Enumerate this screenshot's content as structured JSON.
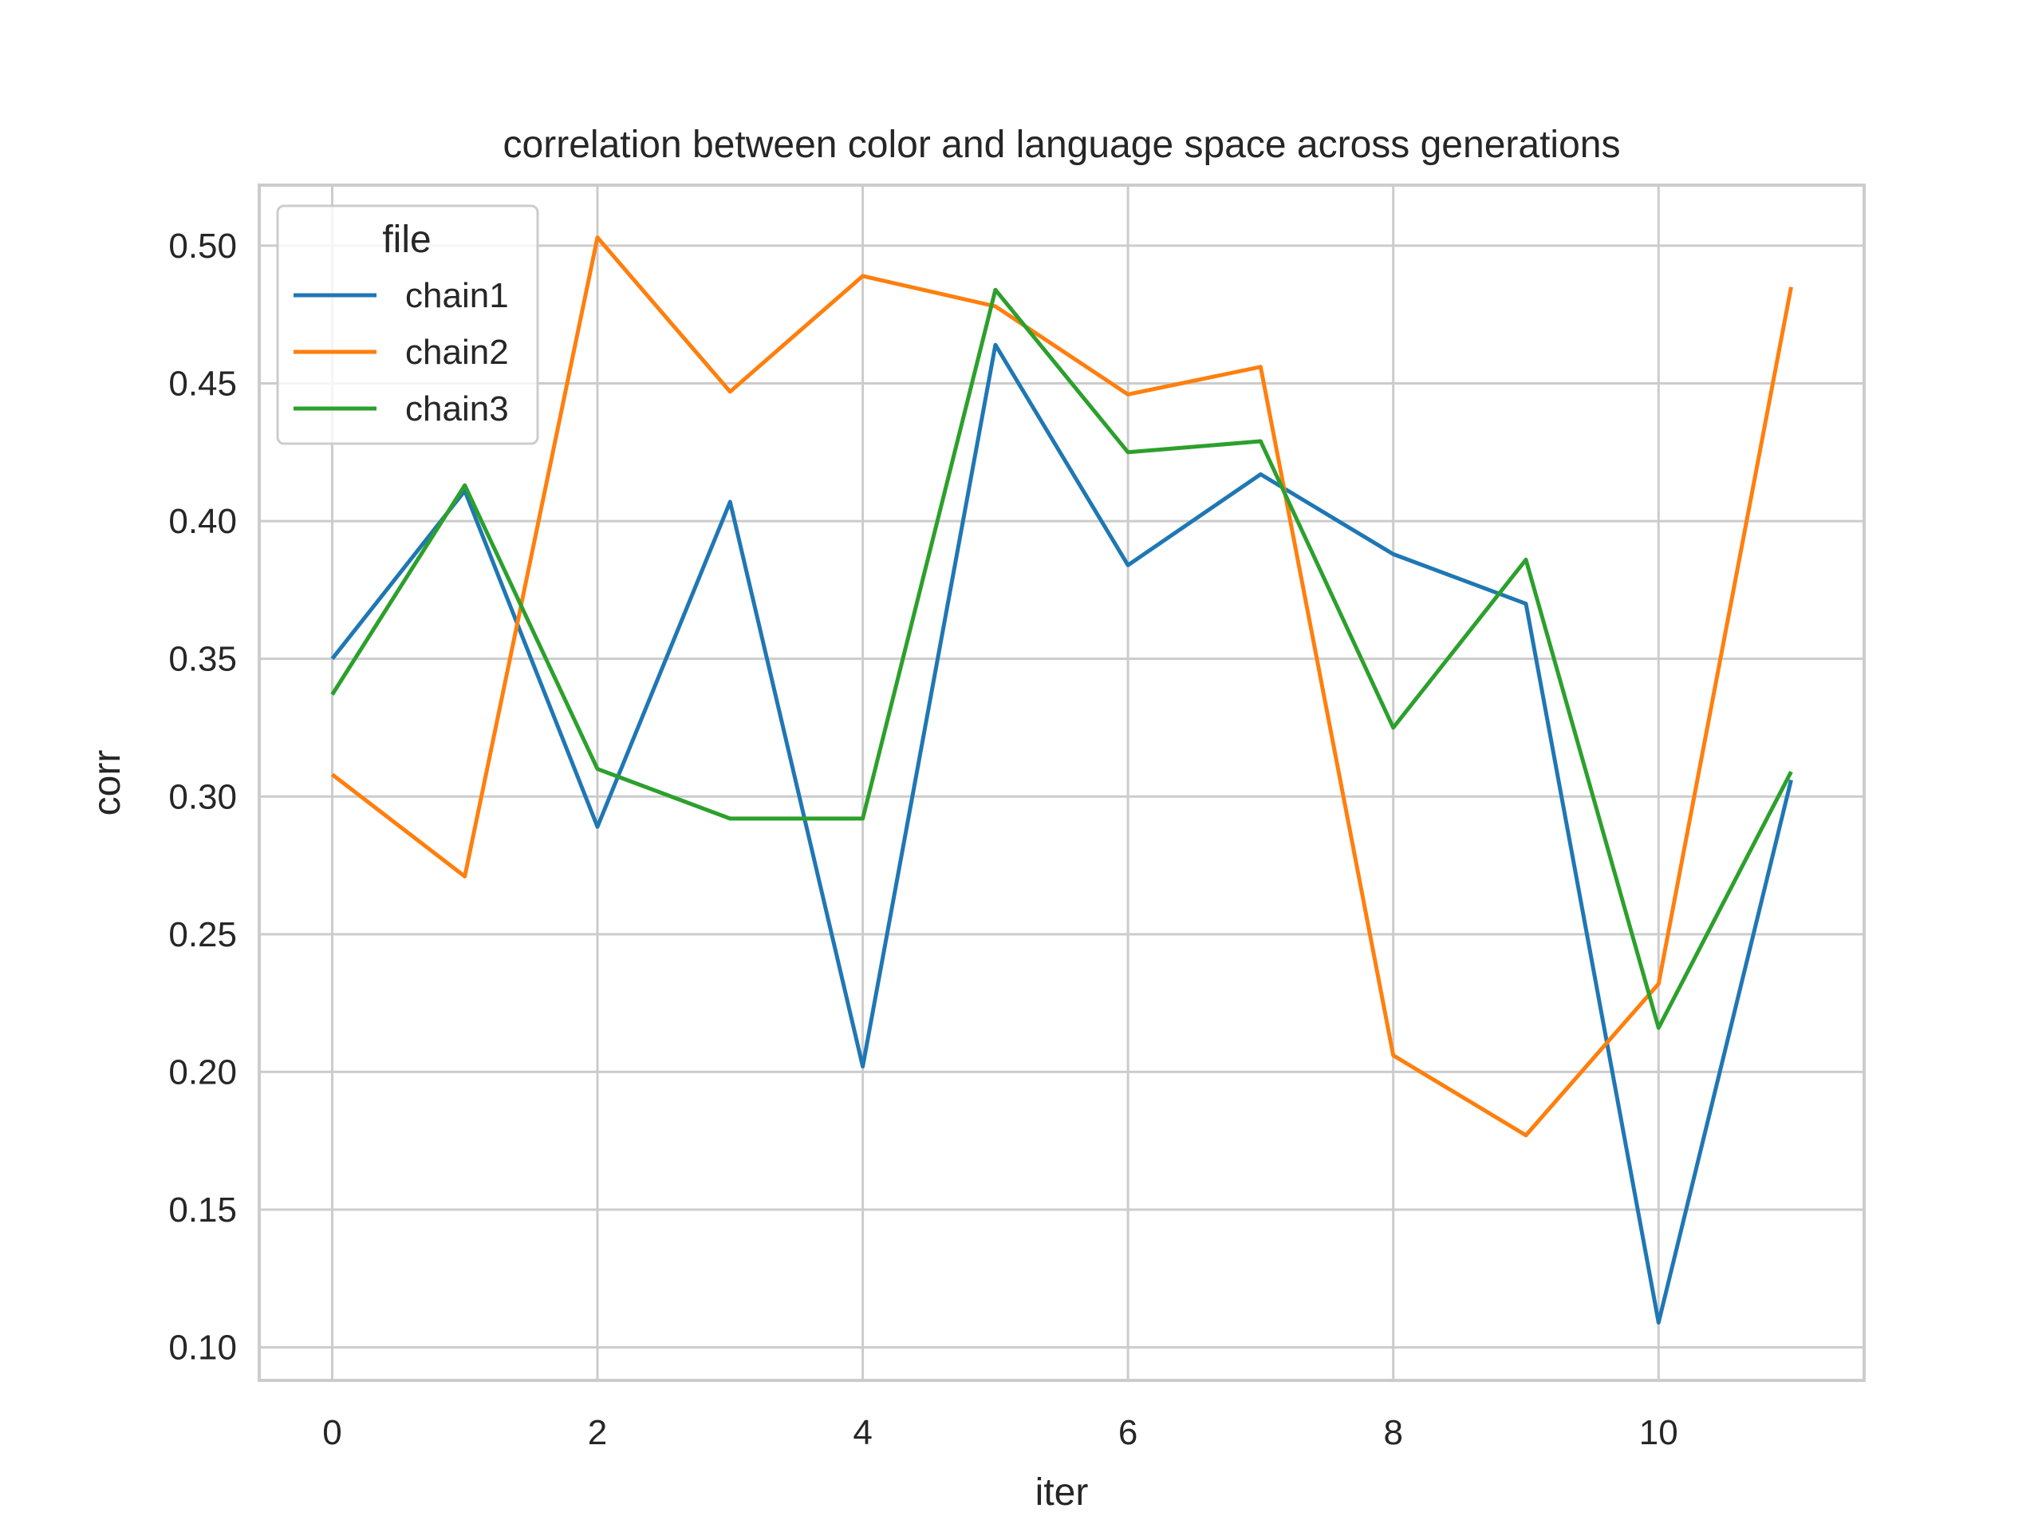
{
  "chart_data": {
    "type": "line",
    "title": "correlation between color and language space across generations",
    "xlabel": "iter",
    "ylabel": "corr",
    "xlim": [
      -0.55,
      11.55
    ],
    "ylim": [
      0.088,
      0.522
    ],
    "xticks": [
      0,
      2,
      4,
      6,
      8,
      10
    ],
    "xtick_labels": [
      "0",
      "2",
      "4",
      "6",
      "8",
      "10"
    ],
    "yticks": [
      0.1,
      0.15,
      0.2,
      0.25,
      0.3,
      0.35,
      0.4,
      0.45,
      0.5
    ],
    "ytick_labels": [
      "0.10",
      "0.15",
      "0.20",
      "0.25",
      "0.30",
      "0.35",
      "0.40",
      "0.45",
      "0.50"
    ],
    "grid": true,
    "legend": {
      "title": "file",
      "placement": "top-left"
    },
    "x": [
      0,
      1,
      2,
      3,
      4,
      5,
      6,
      7,
      8,
      9,
      10,
      11
    ],
    "series": [
      {
        "name": "chain1",
        "color": "#1f77b4",
        "values": [
          0.35,
          0.411,
          0.289,
          0.407,
          0.202,
          0.464,
          0.384,
          0.417,
          0.388,
          0.37,
          0.109,
          0.306
        ]
      },
      {
        "name": "chain2",
        "color": "#ff7f0e",
        "values": [
          0.308,
          0.271,
          0.503,
          0.447,
          0.489,
          0.478,
          0.446,
          0.456,
          0.206,
          0.177,
          0.232,
          0.485
        ]
      },
      {
        "name": "chain3",
        "color": "#2ca02c",
        "values": [
          0.337,
          0.413,
          0.31,
          0.292,
          0.292,
          0.484,
          0.425,
          0.429,
          0.325,
          0.386,
          0.216,
          0.309
        ]
      }
    ]
  }
}
